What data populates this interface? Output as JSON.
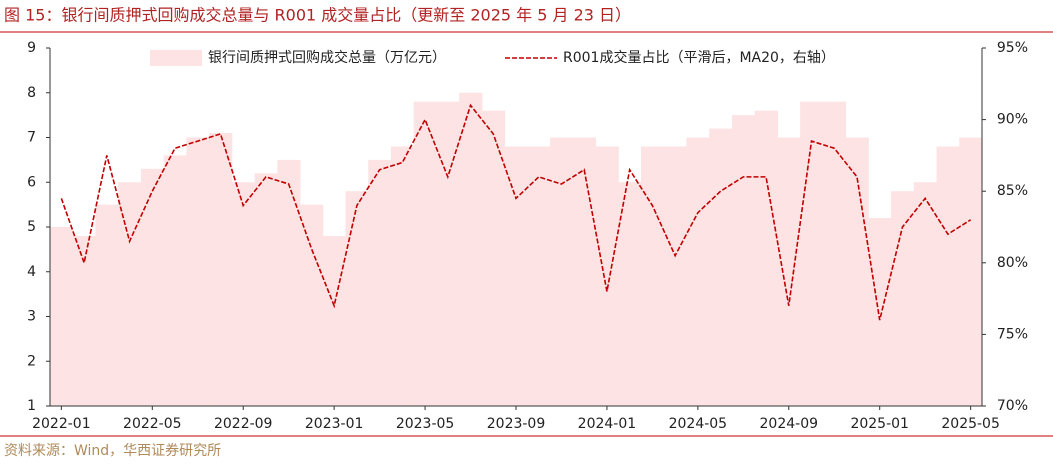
{
  "chart_data": {
    "type": "bar_line",
    "title": "图 15：银行间质押式回购成交总量与 R001 成交量占比（更新至 2025 年 5 月 23 日）",
    "source": "资料来源：Wind，华西证券研究所",
    "categories": [
      "2022-01",
      null,
      null,
      null,
      "2022-05",
      null,
      null,
      null,
      "2022-09",
      null,
      null,
      null,
      "2023-01",
      null,
      null,
      null,
      "2023-05",
      null,
      null,
      null,
      "2023-09",
      null,
      null,
      null,
      "2024-01",
      null,
      null,
      null,
      "2024-05",
      null,
      null,
      null,
      "2024-09",
      null,
      null,
      null,
      "2025-01",
      null,
      null,
      null,
      "2025-05"
    ],
    "series": [
      {
        "name": "银行间质押式回购成交总量（万亿元）",
        "color": "#fde3e3",
        "kind": "bar",
        "values": [
          5.0,
          4.8,
          5.5,
          6.0,
          6.3,
          6.6,
          7.0,
          7.1,
          6.0,
          6.2,
          6.5,
          5.5,
          4.8,
          5.8,
          6.5,
          6.8,
          7.8,
          7.8,
          8.0,
          7.6,
          6.8,
          6.8,
          7.0,
          7.0,
          6.8,
          6.0,
          6.8,
          6.8,
          7.0,
          7.2,
          7.5,
          7.6,
          7.0,
          7.8,
          7.8,
          7.0,
          5.2,
          5.8,
          6.0,
          6.8,
          7.0
        ]
      },
      {
        "name": "R001成交量占比（平滑后，MA20，右轴）",
        "color": "#c00000",
        "kind": "line",
        "axis": "y2",
        "values": [
          84.5,
          80.0,
          87.5,
          81.5,
          85.0,
          88.0,
          88.5,
          89.0,
          84.0,
          86.0,
          85.5,
          81.0,
          77.0,
          84.0,
          86.5,
          87.0,
          90.0,
          86.0,
          91.0,
          89.0,
          84.5,
          86.0,
          85.5,
          86.5,
          78.0,
          86.5,
          84.0,
          80.5,
          83.5,
          85.0,
          86.0,
          86.0,
          77.0,
          88.5,
          88.0,
          86.0,
          76.0,
          82.5,
          84.5,
          82.0,
          83.0
        ]
      }
    ],
    "ylim": [
      1,
      9
    ],
    "yticks": [
      1,
      2,
      3,
      4,
      5,
      6,
      7,
      8,
      9
    ],
    "y2lim": [
      70,
      95
    ],
    "y2ticks": [
      {
        "value": 70,
        "label": "70%"
      },
      {
        "value": 75,
        "label": "75%"
      },
      {
        "value": 80,
        "label": "80%"
      },
      {
        "value": 85,
        "label": "85%"
      },
      {
        "value": 90,
        "label": "90%"
      },
      {
        "value": 95,
        "label": "95%"
      }
    ],
    "legend": "top"
  }
}
